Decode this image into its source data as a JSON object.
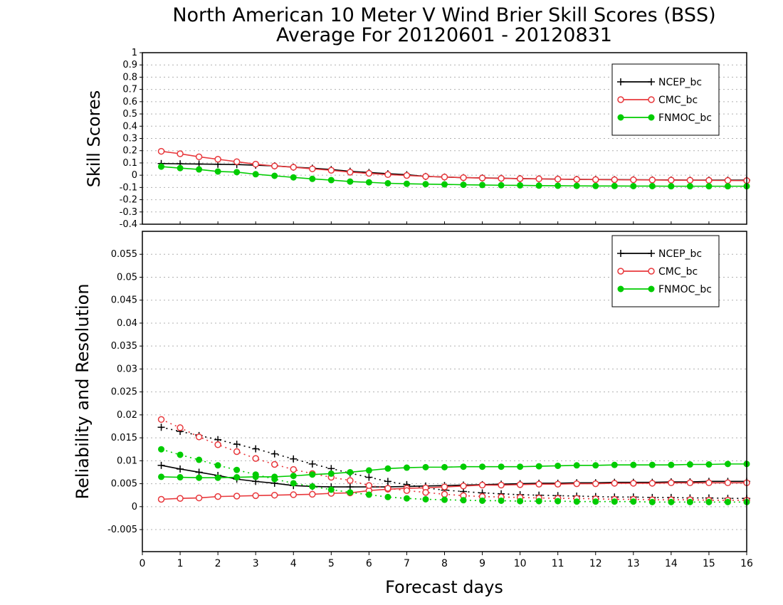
{
  "title": {
    "line1": "North American 10 Meter V Wind Brier Skill Scores (BSS)",
    "line2": "Average For 20120601 - 20120831"
  },
  "colors": {
    "NCEP_bc": "#000000",
    "CMC_bc": "#e8383c",
    "FNMOC_bc": "#00cc00"
  },
  "chart_data": [
    {
      "type": "line",
      "ylabel": "Skill Scores",
      "ylim": [
        -0.4,
        1.0
      ],
      "yticks": [
        -0.4,
        -0.3,
        -0.2,
        -0.1,
        0,
        0.1,
        0.2,
        0.3,
        0.4,
        0.5,
        0.6,
        0.7,
        0.8,
        0.9,
        1
      ],
      "ytick_labels": [
        "-0.4",
        "-0.3",
        "-0.2",
        "-0.1",
        "0",
        "0.1",
        "0.2",
        "0.3",
        "0.4",
        "0.5",
        "0.6",
        "0.7",
        "0.8",
        "0.9",
        "1"
      ],
      "xlim": [
        0,
        16
      ],
      "grid": true,
      "legend": {
        "position": "top-right",
        "entries": [
          "NCEP_bc",
          "CMC_bc",
          "FNMOC_bc"
        ]
      },
      "x": [
        0.5,
        1,
        1.5,
        2,
        2.5,
        3,
        3.5,
        4,
        4.5,
        5,
        5.5,
        6,
        6.5,
        7,
        7.5,
        8,
        8.5,
        9,
        9.5,
        10,
        10.5,
        11,
        11.5,
        12,
        12.5,
        13,
        13.5,
        14,
        14.5,
        15,
        15.5,
        16
      ],
      "series": [
        {
          "name": "NCEP_bc",
          "color": "#000000",
          "marker": "plus",
          "style": "solid",
          "values": [
            0.095,
            0.093,
            0.091,
            0.089,
            0.087,
            0.082,
            0.076,
            0.066,
            0.057,
            0.046,
            0.032,
            0.022,
            0.012,
            0.004,
            -0.01,
            -0.015,
            -0.02,
            -0.022,
            -0.025,
            -0.028,
            -0.03,
            -0.032,
            -0.034,
            -0.035,
            -0.036,
            -0.037,
            -0.038,
            -0.039,
            -0.04,
            -0.04,
            -0.04,
            -0.04
          ]
        },
        {
          "name": "CMC_bc",
          "color": "#e8383c",
          "marker": "open-circle",
          "style": "solid",
          "values": [
            0.195,
            0.175,
            0.15,
            0.13,
            0.11,
            0.09,
            0.075,
            0.065,
            0.052,
            0.04,
            0.025,
            0.015,
            0.005,
            -0.002,
            -0.01,
            -0.015,
            -0.02,
            -0.023,
            -0.026,
            -0.028,
            -0.03,
            -0.032,
            -0.034,
            -0.036,
            -0.037,
            -0.038,
            -0.039,
            -0.04,
            -0.041,
            -0.042,
            -0.043,
            -0.044
          ]
        },
        {
          "name": "FNMOC_bc",
          "color": "#00cc00",
          "marker": "filled-circle",
          "style": "solid",
          "values": [
            0.07,
            0.058,
            0.047,
            0.03,
            0.025,
            0.008,
            -0.005,
            -0.018,
            -0.03,
            -0.04,
            -0.052,
            -0.058,
            -0.066,
            -0.07,
            -0.073,
            -0.075,
            -0.078,
            -0.08,
            -0.082,
            -0.083,
            -0.085,
            -0.086,
            -0.087,
            -0.088,
            -0.088,
            -0.089,
            -0.089,
            -0.09,
            -0.09,
            -0.09,
            -0.09,
            -0.09
          ]
        }
      ]
    },
    {
      "type": "line",
      "ylabel": "Reliability and Resolution",
      "xlabel": "Forecast days",
      "ylim": [
        -0.0098,
        0.06
      ],
      "yticks": [
        -0.005,
        0,
        0.005,
        0.01,
        0.015,
        0.02,
        0.025,
        0.03,
        0.035,
        0.04,
        0.045,
        0.05,
        0.055
      ],
      "ytick_labels": [
        "-0.005",
        "0",
        "0.005",
        "0.01",
        "0.015",
        "0.02",
        "0.025",
        "0.03",
        "0.035",
        "0.04",
        "0.045",
        "0.05",
        "0.055"
      ],
      "xlim": [
        0,
        16
      ],
      "xticks": [
        0,
        1,
        2,
        3,
        4,
        5,
        6,
        7,
        8,
        9,
        10,
        11,
        12,
        13,
        14,
        15,
        16
      ],
      "xtick_labels": [
        "0",
        "1",
        "2",
        "3",
        "4",
        "5",
        "6",
        "7",
        "8",
        "9",
        "10",
        "11",
        "12",
        "13",
        "14",
        "15",
        "16"
      ],
      "grid": true,
      "legend": {
        "position": "top-right",
        "entries": [
          "NCEP_bc",
          "CMC_bc",
          "FNMOC_bc"
        ]
      },
      "x": [
        0.5,
        1,
        1.5,
        2,
        2.5,
        3,
        3.5,
        4,
        4.5,
        5,
        5.5,
        6,
        6.5,
        7,
        7.5,
        8,
        8.5,
        9,
        9.5,
        10,
        10.5,
        11,
        11.5,
        12,
        12.5,
        13,
        13.5,
        14,
        14.5,
        15,
        15.5,
        16
      ],
      "series": [
        {
          "name": "NCEP_bc",
          "color": "#000000",
          "marker": "plus",
          "style": "solid",
          "values": [
            0.009,
            0.0082,
            0.0075,
            0.0068,
            0.006,
            0.0055,
            0.0051,
            0.0046,
            0.0044,
            0.0043,
            0.0043,
            0.0043,
            0.0043,
            0.0044,
            0.0045,
            0.0046,
            0.0047,
            0.0048,
            0.0049,
            0.005,
            0.0051,
            0.0051,
            0.0052,
            0.0052,
            0.0053,
            0.0053,
            0.0053,
            0.0054,
            0.0054,
            0.0055,
            0.0055,
            0.0055
          ]
        },
        {
          "name": "NCEP_bc",
          "color": "#000000",
          "marker": "plus",
          "style": "dotted",
          "values": [
            0.0173,
            0.0164,
            0.0155,
            0.0146,
            0.0136,
            0.0126,
            0.0115,
            0.0104,
            0.0093,
            0.0083,
            0.0073,
            0.0064,
            0.0055,
            0.0048,
            0.0041,
            0.0036,
            0.0033,
            0.003,
            0.0028,
            0.0026,
            0.0025,
            0.0024,
            0.0023,
            0.0022,
            0.0021,
            0.0021,
            0.002,
            0.002,
            0.0019,
            0.0019,
            0.0018,
            0.0018
          ]
        },
        {
          "name": "CMC_bc",
          "color": "#e8383c",
          "marker": "open-circle",
          "style": "solid",
          "values": [
            0.0016,
            0.0018,
            0.0019,
            0.0022,
            0.0023,
            0.0024,
            0.0025,
            0.0026,
            0.0027,
            0.0029,
            0.003,
            0.0035,
            0.0038,
            0.004,
            0.0041,
            0.0043,
            0.0045,
            0.0047,
            0.0047,
            0.0048,
            0.0049,
            0.0049,
            0.005,
            0.005,
            0.0051,
            0.0051,
            0.0051,
            0.0052,
            0.0052,
            0.0052,
            0.0052,
            0.0052
          ]
        },
        {
          "name": "CMC_bc",
          "color": "#e8383c",
          "marker": "open-circle",
          "style": "dotted",
          "values": [
            0.019,
            0.0172,
            0.0152,
            0.0135,
            0.012,
            0.0105,
            0.0092,
            0.0081,
            0.0072,
            0.0064,
            0.0057,
            0.0046,
            0.004,
            0.0035,
            0.0031,
            0.0027,
            0.0024,
            0.0022,
            0.0021,
            0.002,
            0.0019,
            0.0018,
            0.0018,
            0.0017,
            0.0016,
            0.0016,
            0.0015,
            0.0015,
            0.0015,
            0.0014,
            0.0014,
            0.0014
          ]
        },
        {
          "name": "FNMOC_bc",
          "color": "#00cc00",
          "marker": "filled-circle",
          "style": "solid",
          "values": [
            0.0065,
            0.0064,
            0.0063,
            0.0063,
            0.0064,
            0.0065,
            0.0065,
            0.0067,
            0.007,
            0.0072,
            0.0075,
            0.0079,
            0.0083,
            0.0085,
            0.0086,
            0.0086,
            0.0087,
            0.0087,
            0.0087,
            0.0087,
            0.0088,
            0.0089,
            0.009,
            0.009,
            0.0091,
            0.0091,
            0.0091,
            0.0091,
            0.0092,
            0.0092,
            0.0093,
            0.0093
          ]
        },
        {
          "name": "FNMOC_bc",
          "color": "#00cc00",
          "marker": "filled-circle",
          "style": "dotted",
          "values": [
            0.0125,
            0.0113,
            0.0102,
            0.009,
            0.008,
            0.007,
            0.006,
            0.0051,
            0.0044,
            0.0037,
            0.0031,
            0.0026,
            0.0021,
            0.0018,
            0.0016,
            0.0015,
            0.0014,
            0.0013,
            0.0013,
            0.0012,
            0.0012,
            0.0012,
            0.0011,
            0.0011,
            0.0011,
            0.0011,
            0.001,
            0.001,
            0.001,
            0.001,
            0.001,
            0.001
          ]
        }
      ]
    }
  ]
}
